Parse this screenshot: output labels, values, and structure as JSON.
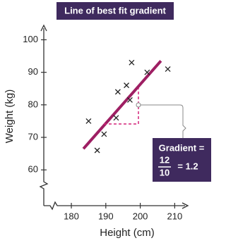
{
  "chart_data": {
    "type": "scatter",
    "title": "Line of best fit gradient",
    "x_label": "Height (cm)",
    "y_label": "Weight (kg)",
    "x": [
      185,
      187.5,
      189.5,
      193,
      193.5,
      196,
      197,
      197.5,
      202,
      208
    ],
    "y": [
      75,
      66,
      71,
      76,
      84,
      86,
      81.5,
      93,
      90,
      91
    ],
    "marker_color": "#222222",
    "fit_line": {
      "x": [
        183.5,
        206
      ],
      "y": [
        66.5,
        93.5
      ],
      "color": "#9e1f63"
    },
    "xlim": [
      172,
      213
    ],
    "ylim": [
      49,
      104
    ],
    "xticks": [
      180,
      190,
      200,
      210
    ],
    "yticks": [
      60,
      70,
      80,
      90,
      100
    ],
    "annotation": {
      "label": "Gradient =",
      "rise": 12,
      "run": 10,
      "result": "= 1.2"
    }
  }
}
